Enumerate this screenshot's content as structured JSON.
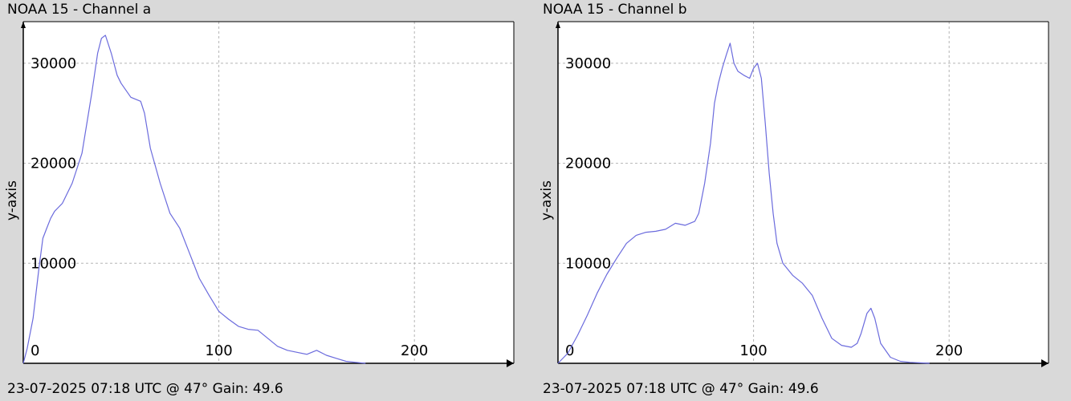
{
  "panels": [
    {
      "title": "NOAA 15 - Channel a",
      "footer": "23-07-2025 07:18 UTC @ 47° Gain: 49.6"
    },
    {
      "title": "NOAA 15 - Channel b",
      "footer": "23-07-2025 07:18 UTC @ 47° Gain: 49.6"
    }
  ],
  "colors": {
    "line": "#6b6bdd",
    "grid": "#b5b5b5",
    "plot_bg": "#ffffff",
    "page_bg": "#d9d9d9"
  },
  "chart_data": [
    {
      "type": "line",
      "title": "NOAA 15 - Channel a",
      "xlabel": "",
      "ylabel": "y-axis",
      "xlim": [
        0,
        250
      ],
      "ylim": [
        0,
        34000
      ],
      "xticks": [
        "0",
        "100",
        "200"
      ],
      "yticks": [
        "10000",
        "20000",
        "30000"
      ],
      "grid": true,
      "series": [
        {
          "x": [
            0,
            2,
            5,
            8,
            10,
            12,
            14,
            16,
            18,
            20,
            25,
            30,
            35,
            38,
            40,
            42,
            45,
            48,
            50,
            55,
            60,
            62,
            65,
            70,
            75,
            80,
            85,
            90,
            95,
            100,
            105,
            110,
            115,
            120,
            125,
            130,
            135,
            140,
            145,
            150,
            155,
            160,
            165,
            170,
            175
          ],
          "y": [
            0,
            1500,
            4500,
            9500,
            12500,
            13500,
            14500,
            15200,
            15600,
            16000,
            18000,
            21000,
            27000,
            31000,
            32500,
            32800,
            31000,
            28800,
            28000,
            26600,
            26200,
            25000,
            21500,
            18000,
            15000,
            13500,
            11000,
            8500,
            6800,
            5200,
            4400,
            3700,
            3400,
            3300,
            2500,
            1700,
            1300,
            1100,
            900,
            1300,
            800,
            500,
            200,
            100,
            0
          ]
        }
      ]
    },
    {
      "type": "line",
      "title": "NOAA 15 - Channel b",
      "xlabel": "",
      "ylabel": "y-axis",
      "xlim": [
        0,
        250
      ],
      "ylim": [
        0,
        34000
      ],
      "xticks": [
        "0",
        "100",
        "200"
      ],
      "yticks": [
        "10000",
        "20000",
        "30000"
      ],
      "grid": true,
      "series": [
        {
          "x": [
            0,
            5,
            10,
            15,
            20,
            25,
            30,
            35,
            40,
            45,
            50,
            55,
            60,
            65,
            70,
            72,
            75,
            78,
            80,
            82,
            84,
            86,
            88,
            90,
            92,
            95,
            98,
            100,
            102,
            104,
            106,
            108,
            110,
            112,
            115,
            120,
            125,
            130,
            135,
            140,
            145,
            150,
            153,
            155,
            158,
            160,
            162,
            165,
            170,
            175,
            180,
            185,
            190
          ],
          "y": [
            0,
            1000,
            2800,
            4800,
            7000,
            8900,
            10500,
            12000,
            12800,
            13100,
            13200,
            13400,
            14000,
            13800,
            14200,
            15000,
            18000,
            22000,
            26000,
            28000,
            29500,
            30800,
            32000,
            30000,
            29200,
            28800,
            28500,
            29500,
            30000,
            28500,
            24000,
            19000,
            15000,
            12000,
            10000,
            8800,
            8000,
            6800,
            4500,
            2500,
            1800,
            1600,
            2000,
            3000,
            5000,
            5500,
            4500,
            2000,
            600,
            200,
            100,
            50,
            0
          ]
        }
      ]
    }
  ]
}
